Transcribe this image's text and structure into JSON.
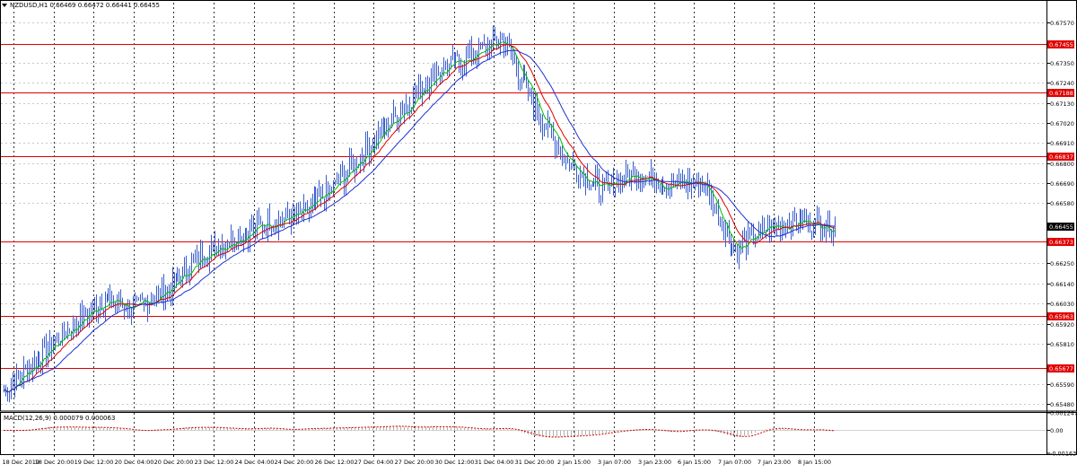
{
  "window": {
    "symbol_title": "NZDUSD,H1  0.66469 0.66472 0.66441 0.66455",
    "macd_title": "MACD(12,26,9) 0.000079 0.000063"
  },
  "colors": {
    "background": "#ffffff",
    "grid": "#c8c8c8",
    "candles": "#3a5fcd",
    "ma_fast": "#00c000",
    "ma_mid": "#e00000",
    "ma_slow": "#2030d0",
    "level_line": "#e00000",
    "macd_signal": "#d00000",
    "current_price_bg": "#000000"
  },
  "price_axis": {
    "ticks": [
      "0.67570",
      "0.67350",
      "0.67240",
      "0.67130",
      "0.67020",
      "0.66910",
      "0.66800",
      "0.66690",
      "0.66580",
      "0.66250",
      "0.66140",
      "0.66030",
      "0.65920",
      "0.65810",
      "0.65590",
      "0.65480"
    ],
    "range": [
      0.6545,
      0.6768
    ]
  },
  "horizontal_levels": [
    {
      "price": 0.67455,
      "label": "0.67455"
    },
    {
      "price": 0.67188,
      "label": "0.67188"
    },
    {
      "price": 0.66837,
      "label": "0.66837"
    },
    {
      "price": 0.66373,
      "label": "0.66373"
    },
    {
      "price": 0.65963,
      "label": "0.65963"
    },
    {
      "price": 0.65677,
      "label": "0.65677"
    }
  ],
  "current_price": {
    "price": 0.66455,
    "label": "0.66455"
  },
  "macd_axis": {
    "ticks": [
      "0.001247",
      "0.00",
      "-0.001638"
    ],
    "range": [
      -0.001638,
      0.001247
    ]
  },
  "time_axis": {
    "labels": [
      "18 Dec 2019",
      "18 Dec 20:00",
      "19 Dec 12:00",
      "20 Dec 04:00",
      "20 Dec 20:00",
      "23 Dec 12:00",
      "24 Dec 04:00",
      "24 Dec 20:00",
      "26 Dec 12:00",
      "27 Dec 04:00",
      "27 Dec 20:00",
      "30 Dec 12:00",
      "31 Dec 04:00",
      "31 Dec 20:00",
      "2 Jan 15:00",
      "3 Jan 07:00",
      "3 Jan 23:00",
      "6 Jan 15:00",
      "7 Jan 07:00",
      "7 Jan 23:00",
      "8 Jan 15:00"
    ]
  },
  "chart_data": {
    "type": "candlestick",
    "symbol": "NZDUSD",
    "timeframe": "H1",
    "x_labels": [
      "18 Dec 2019",
      "18 Dec 20:00",
      "19 Dec 12:00",
      "20 Dec 04:00",
      "20 Dec 20:00",
      "23 Dec 12:00",
      "24 Dec 04:00",
      "24 Dec 20:00",
      "26 Dec 12:00",
      "27 Dec 04:00",
      "27 Dec 20:00",
      "30 Dec 12:00",
      "31 Dec 04:00",
      "31 Dec 20:00",
      "2 Jan 15:00",
      "3 Jan 07:00",
      "3 Jan 23:00",
      "6 Jan 15:00",
      "7 Jan 07:00",
      "7 Jan 23:00",
      "8 Jan 15:00"
    ],
    "price_path": [
      0.6555,
      0.6572,
      0.659,
      0.6605,
      0.66,
      0.6612,
      0.663,
      0.664,
      0.6648,
      0.6652,
      0.6668,
      0.669,
      0.671,
      0.673,
      0.6738,
      0.6748,
      0.671,
      0.668,
      0.6665,
      0.6675,
      0.6668,
      0.667,
      0.6632,
      0.6645,
      0.6648,
      0.6645
    ],
    "ylim": [
      0.6545,
      0.6768
    ],
    "last_close": 0.66455,
    "indicator": {
      "name": "MACD(12,26,9)",
      "main": 7.9e-05,
      "signal": 6.3e-05
    }
  }
}
